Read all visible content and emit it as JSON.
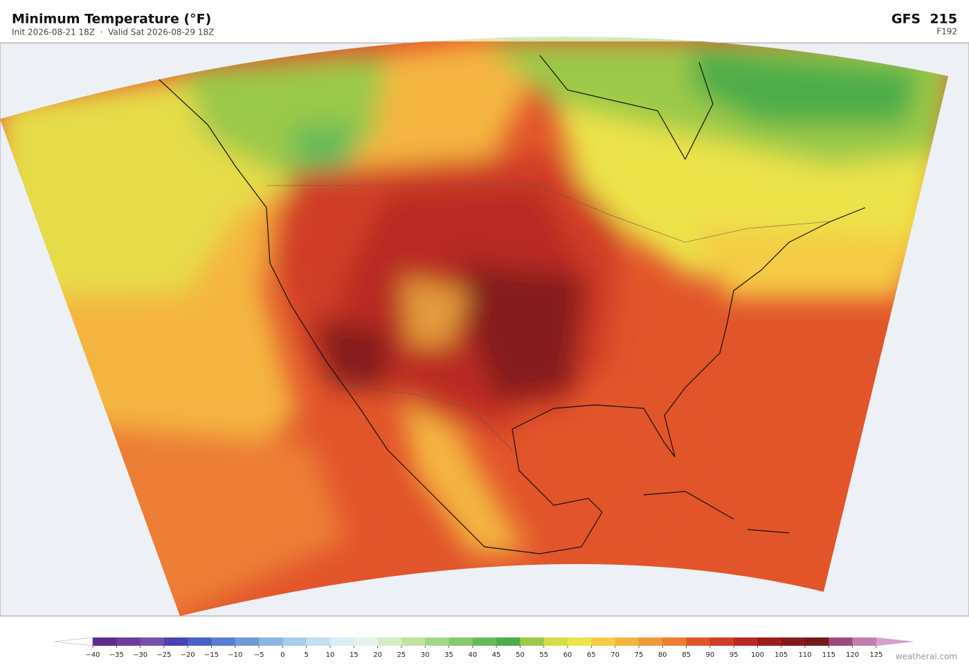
{
  "header": {
    "title": "Minimum Temperature  (°F)",
    "subtitle": "Init 2026-08-21 18Z  ·  Valid Sat 2026-08-29 18Z",
    "model": "GFS  215",
    "forecast_hour": "F192"
  },
  "colorbar": {
    "ticks": [
      "−40",
      "−35",
      "−30",
      "−25",
      "−20",
      "−15",
      "−10",
      "−5",
      "0",
      "5",
      "10",
      "15",
      "20",
      "25",
      "30",
      "35",
      "40",
      "45",
      "50",
      "55",
      "60",
      "65",
      "70",
      "75",
      "80",
      "85",
      "90",
      "95",
      "100",
      "105",
      "110",
      "115",
      "120",
      "125"
    ],
    "colors": [
      "#5b2d8e",
      "#6a3d9a",
      "#7650ae",
      "#4b40b5",
      "#4a5fc8",
      "#5a7fd0",
      "#6f9ad8",
      "#8ab6e0",
      "#a8cde8",
      "#c2e0ef",
      "#d8eef2",
      "#e4f4ea",
      "#d6ecc6",
      "#bfe3a0",
      "#a2d888",
      "#86ca6c",
      "#66bb5a",
      "#4dad4a",
      "#9bc94a",
      "#d4dd48",
      "#ece34a",
      "#f5cc45",
      "#f4b540",
      "#f09a3c",
      "#ec7e34",
      "#e2552b",
      "#d03d25",
      "#b82a22",
      "#9a1e1e",
      "#851a1c",
      "#731a1f",
      "#9c4a7a",
      "#c47cb0"
    ],
    "under_color": "#ffffff",
    "over_color": "#d8a0cc"
  },
  "watermark": "weatherai.com"
}
